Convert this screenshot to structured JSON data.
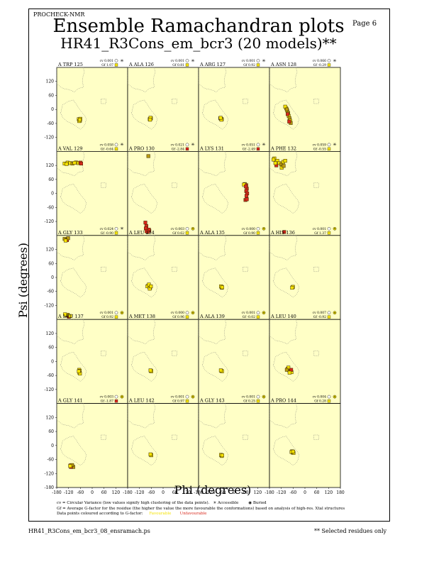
{
  "header": {
    "program": "PROCHECK-NMR",
    "page": "Page  6",
    "title": "Ensemble Ramachandran plots",
    "subtitle": "HR41_R3Cons_em_bcr3 (20 models)**"
  },
  "colors": {
    "panel_bg": "#ffffc6",
    "favourable": "#f4e200",
    "unfavourable": "#d8281c",
    "medium": "#b89a10",
    "region_outline": "#6f6f6f"
  },
  "chart_data": {
    "type": "scatter",
    "grid_shape": [
      5,
      4
    ],
    "xlabel": "Phi (degrees)",
    "ylabel": "Psi (degrees)",
    "xlim": [
      -180,
      180
    ],
    "ylim": [
      -180,
      180
    ],
    "x_ticks": [
      "-180",
      "-120",
      "-60",
      "0",
      "60",
      "120",
      "180"
    ],
    "y_ticks": [
      "120",
      "60",
      "0",
      "-60",
      "-120",
      "-180"
    ],
    "panels": [
      {
        "residue": "A TRP 125",
        "cv": "cv 0.001",
        "gf": "Gf  1.07",
        "cv_icon": "star",
        "gf_color": "#f4e200",
        "points": [
          [
            -65,
            -45,
            "f"
          ],
          [
            -62,
            -48,
            "f"
          ],
          [
            -68,
            -42,
            "f"
          ],
          [
            -60,
            -40,
            "f"
          ],
          [
            -66,
            -50,
            "f"
          ],
          [
            -63,
            -44,
            "f"
          ]
        ]
      },
      {
        "residue": "A ALA 126",
        "cv": "cv 0.001",
        "gf": "Gf  0.81",
        "cv_icon": "star",
        "gf_color": "#f4e200",
        "points": [
          [
            -65,
            -40,
            "f"
          ],
          [
            -62,
            -38,
            "f"
          ],
          [
            -68,
            -42,
            "f"
          ],
          [
            -64,
            -36,
            "f"
          ],
          [
            -66,
            -44,
            "f"
          ]
        ]
      },
      {
        "residue": "A ARG 127",
        "cv": "cv 0.001",
        "gf": "Gf  0.92",
        "cv_icon": "star",
        "gf_color": "#f4e200",
        "points": [
          [
            -66,
            -40,
            "f"
          ],
          [
            -62,
            -42,
            "f"
          ],
          [
            -70,
            -38,
            "f"
          ],
          [
            -64,
            -44,
            "f"
          ],
          [
            -68,
            -36,
            "f"
          ]
        ]
      },
      {
        "residue": "A ASN 128",
        "cv": "cv 0.066",
        "gf": "Gf -0.29",
        "cv_icon": "star",
        "gf_color": "#f4e200",
        "points": [
          [
            -95,
            5,
            "f"
          ],
          [
            -90,
            -5,
            "f"
          ],
          [
            -85,
            -15,
            "m"
          ],
          [
            -82,
            -28,
            "f"
          ],
          [
            -78,
            -38,
            "m"
          ],
          [
            -75,
            -48,
            "f"
          ],
          [
            -72,
            -58,
            "m"
          ],
          [
            -100,
            12,
            "f"
          ],
          [
            -88,
            -20,
            "u"
          ],
          [
            -80,
            -52,
            "u"
          ],
          [
            -92,
            0,
            "m"
          ]
        ]
      },
      {
        "residue": "A VAL 129",
        "cv": "cv 0.058",
        "gf": "Gf -0.64",
        "cv_icon": "star",
        "gf_color": "#f4e200",
        "points": [
          [
            -140,
            128,
            "f"
          ],
          [
            -125,
            132,
            "f"
          ],
          [
            -112,
            130,
            "f"
          ],
          [
            -100,
            128,
            "m"
          ],
          [
            -82,
            133,
            "f"
          ],
          [
            -70,
            130,
            "f"
          ],
          [
            -60,
            132,
            "u"
          ],
          [
            -56,
            128,
            "u"
          ],
          [
            -130,
            126,
            "f"
          ],
          [
            -90,
            131,
            "f"
          ]
        ]
      },
      {
        "residue": "A PRO 130",
        "cv": "cv 0.021",
        "gf": "Gf -2.84",
        "cv_icon": "star",
        "gf_color": "#d8281c",
        "points": [
          [
            -75,
            160,
            "m"
          ],
          [
            -85,
            -140,
            "u"
          ],
          [
            -80,
            -158,
            "u"
          ],
          [
            -70,
            -160,
            "u"
          ],
          [
            -78,
            -165,
            "u"
          ],
          [
            -72,
            -155,
            "u"
          ],
          [
            -88,
            -150,
            "u"
          ],
          [
            -90,
            -125,
            "u"
          ],
          [
            -84,
            -162,
            "u"
          ]
        ]
      },
      {
        "residue": "A LYS 131",
        "cv": "cv 0.051",
        "gf": "Gf -2.49",
        "cv_icon": "star",
        "gf_color": "#d8281c",
        "points": [
          [
            55,
            40,
            "m"
          ],
          [
            62,
            35,
            "u"
          ],
          [
            65,
            20,
            "u"
          ],
          [
            62,
            10,
            "u"
          ],
          [
            67,
            0,
            "u"
          ],
          [
            63,
            -10,
            "u"
          ],
          [
            58,
            -28,
            "u"
          ],
          [
            65,
            -25,
            "u"
          ],
          [
            50,
            38,
            "f"
          ],
          [
            60,
            30,
            "u"
          ]
        ]
      },
      {
        "residue": "A PHE 132",
        "cv": "cv 0.059",
        "gf": "Gf -0.55",
        "cv_icon": "star",
        "gf_color": "#f4e200",
        "points": [
          [
            -155,
            150,
            "f"
          ],
          [
            -140,
            140,
            "f"
          ],
          [
            -130,
            130,
            "f"
          ],
          [
            -120,
            125,
            "m"
          ],
          [
            -110,
            135,
            "f"
          ],
          [
            -100,
            140,
            "f"
          ],
          [
            -145,
            120,
            "u"
          ],
          [
            -150,
            130,
            "f"
          ],
          [
            -118,
            110,
            "f"
          ],
          [
            -108,
            118,
            "m"
          ],
          [
            -160,
            145,
            "f"
          ],
          [
            -105,
            -165,
            "u"
          ]
        ]
      },
      {
        "residue": "A GLY 133",
        "cv": "cv 0.024",
        "gf": "Gf -0.90",
        "cv_icon": "star",
        "gf_color": "#f4e200",
        "points": [
          [
            -140,
            165,
            "m"
          ],
          [
            -128,
            160,
            "u"
          ],
          [
            -122,
            168,
            "m"
          ],
          [
            -135,
            158,
            "f"
          ],
          [
            -130,
            -162,
            "m"
          ],
          [
            -118,
            -168,
            "u"
          ],
          [
            -124,
            -160,
            "m"
          ],
          [
            -112,
            -165,
            "f"
          ],
          [
            -138,
            -158,
            "f"
          ]
        ]
      },
      {
        "residue": "A LEU 134",
        "cv": "cv 0.003",
        "gf": "Gf  0.62",
        "cv_icon": "dot",
        "gf_color": "#f4e200",
        "points": [
          [
            -75,
            -35,
            "f"
          ],
          [
            -70,
            -40,
            "f"
          ],
          [
            -66,
            -44,
            "f"
          ],
          [
            -80,
            -38,
            "f"
          ],
          [
            -72,
            -30,
            "f"
          ],
          [
            -68,
            -48,
            "f"
          ],
          [
            -62,
            -38,
            "f"
          ]
        ]
      },
      {
        "residue": "A ALA 135",
        "cv": "cv 0.000",
        "gf": "Gf  0.90",
        "cv_icon": "dot",
        "gf_color": "#f4e200",
        "points": [
          [
            -64,
            -40,
            "f"
          ],
          [
            -62,
            -44,
            "f"
          ],
          [
            -66,
            -38,
            "f"
          ],
          [
            -60,
            -42,
            "f"
          ]
        ]
      },
      {
        "residue": "A HIS 136",
        "cv": "cv 0.001",
        "gf": "Gf  1.37",
        "cv_icon": "dot",
        "gf_color": "#f4e200",
        "points": [
          [
            -63,
            -42,
            "f"
          ],
          [
            -61,
            -40,
            "f"
          ],
          [
            -65,
            -44,
            "f"
          ]
        ]
      },
      {
        "residue": "A LEU 137",
        "cv": "cv 0.001",
        "gf": "Gf  0.92",
        "cv_icon": "dot",
        "gf_color": "#f4e200",
        "points": [
          [
            -66,
            -36,
            "f"
          ],
          [
            -63,
            -40,
            "f"
          ],
          [
            -65,
            -48,
            "f"
          ],
          [
            -62,
            -52,
            "f"
          ],
          [
            -68,
            -42,
            "f"
          ]
        ]
      },
      {
        "residue": "A MET 138",
        "cv": "cv 0.000",
        "gf": "Gf  0.96",
        "cv_icon": "dot",
        "gf_color": "#f4e200",
        "points": [
          [
            -62,
            -40,
            "f"
          ],
          [
            -60,
            -42,
            "f"
          ],
          [
            -64,
            -38,
            "f"
          ]
        ]
      },
      {
        "residue": "A ALA 139",
        "cv": "cv 0.001",
        "gf": "Gf -0.02",
        "cv_icon": "dot",
        "gf_color": "#f4e200",
        "points": [
          [
            -64,
            -40,
            "f"
          ],
          [
            -61,
            -42,
            "f"
          ],
          [
            -67,
            -38,
            "f"
          ]
        ]
      },
      {
        "residue": "A LEU 140",
        "cv": "cv 0.007",
        "gf": "Gf -0.92",
        "cv_icon": "dot",
        "gf_color": "#f4e200",
        "points": [
          [
            -88,
            -32,
            "u"
          ],
          [
            -80,
            -38,
            "f"
          ],
          [
            -74,
            -42,
            "m"
          ],
          [
            -68,
            -46,
            "f"
          ],
          [
            -84,
            -26,
            "f"
          ],
          [
            -92,
            -36,
            "m"
          ],
          [
            -70,
            -36,
            "u"
          ],
          [
            -78,
            -48,
            "f"
          ]
        ]
      },
      {
        "residue": "A GLY 141",
        "cv": "cv 0.003",
        "gf": "Gf -1.87",
        "cv_icon": "dot",
        "gf_color": "#d8281c",
        "points": [
          [
            -110,
            -85,
            "u"
          ],
          [
            -100,
            -90,
            "u"
          ],
          [
            -96,
            -92,
            "m"
          ],
          [
            -108,
            -92,
            "u"
          ],
          [
            -102,
            -84,
            "m"
          ],
          [
            -112,
            -88,
            "f"
          ]
        ]
      },
      {
        "residue": "A LEU 142",
        "cv": "cv 0.001",
        "gf": "Gf  0.97",
        "cv_icon": "dot",
        "gf_color": "#f4e200",
        "points": [
          [
            -62,
            -40,
            "f"
          ],
          [
            -60,
            -42,
            "f"
          ],
          [
            -64,
            -38,
            "f"
          ]
        ]
      },
      {
        "residue": "A GLY 143",
        "cv": "cv 0.001",
        "gf": "Gf  0.25",
        "cv_icon": "dot",
        "gf_color": "#f4e200",
        "points": [
          [
            -64,
            -42,
            "f"
          ],
          [
            -62,
            -45,
            "f"
          ],
          [
            -66,
            -40,
            "f"
          ],
          [
            -60,
            -42,
            "f"
          ]
        ]
      },
      {
        "residue": "A PRO 144",
        "cv": "cv 0.004",
        "gf": "Gf  0.28",
        "cv_icon": "dot",
        "gf_color": "#f4e200",
        "points": [
          [
            -65,
            -25,
            "f"
          ],
          [
            -62,
            -30,
            "f"
          ],
          [
            -58,
            -32,
            "f"
          ],
          [
            -68,
            -28,
            "f"
          ],
          [
            -60,
            -26,
            "f"
          ]
        ]
      }
    ]
  },
  "axes": {
    "psi_label": "Psi (degrees)",
    "phi_label": "Phi (degrees)"
  },
  "legend": {
    "cv_text": "cv = Circular Variance (low values signify high clustering of the data points).",
    "accessible": "Accessible",
    "buried": "Buried",
    "gf_text": "Gf = Average G-factor for the residue (the higher the value the more favourable the conformations) based on analysis of high-res. Xtal structures",
    "color_text": "Data points coloured according to G-factor:",
    "favourable": "Favourable",
    "unfavourable": "Unfavourable"
  },
  "footer": {
    "file": "HR41_R3Cons_em_bcr3_08_ensramach.ps",
    "note": "** Selected residues only"
  }
}
